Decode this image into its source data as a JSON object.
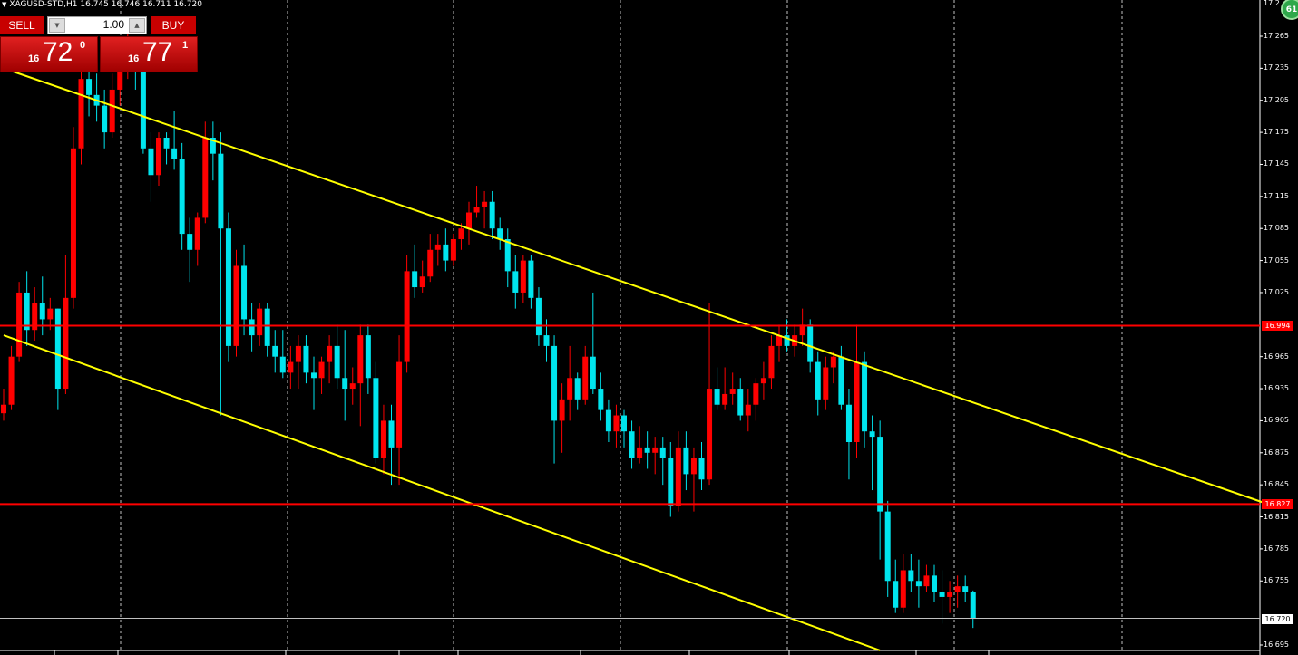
{
  "chart_header": {
    "symbol": "XAGUSD-STD,H1",
    "ohlc": "16.745 16.746 16.711 16.720"
  },
  "trade_panel": {
    "sell_label": "SELL",
    "buy_label": "BUY",
    "lot_value": "1.00",
    "sell_price": {
      "prefix": "16",
      "big": "72",
      "sup": "0"
    },
    "buy_price": {
      "prefix": "16",
      "big": "77",
      "sup": "1"
    }
  },
  "badge": "61",
  "colors": {
    "bull": "#ff0000",
    "bear": "#00e5ee",
    "trend": "#ffff00",
    "level": "#ff0000",
    "grid": "#c0c0c0",
    "background": "#000000"
  },
  "chart_data": {
    "type": "candlestick",
    "symbol": "XAGUSD-STD",
    "timeframe": "H1",
    "y_ticks": [
      "17.265",
      "17.235",
      "17.205",
      "17.175",
      "17.145",
      "17.115",
      "17.085",
      "17.055",
      "17.025",
      "16.965",
      "16.935",
      "16.905",
      "16.875",
      "16.845",
      "16.815",
      "16.785",
      "16.755",
      "16.695"
    ],
    "top_tick_partial": "17.2",
    "ylim": [
      16.688,
      17.295
    ],
    "levels": [
      {
        "label": "16.994",
        "value": 16.994
      },
      {
        "label": "16.827",
        "value": 16.827
      }
    ],
    "current_price": {
      "label": "16.720",
      "value": 16.72
    },
    "trendlines": [
      {
        "p1": [
          0,
          17.235
        ],
        "p2": [
          163,
          16.827
        ]
      },
      {
        "p1": [
          0,
          16.985
        ],
        "p2": [
          113,
          16.69
        ]
      }
    ],
    "candles": [
      [
        16.912,
        16.935,
        16.905,
        16.92
      ],
      [
        16.92,
        16.975,
        16.915,
        16.965
      ],
      [
        16.965,
        17.035,
        16.96,
        17.025
      ],
      [
        17.025,
        17.045,
        16.975,
        16.99
      ],
      [
        16.99,
        17.03,
        16.98,
        17.015
      ],
      [
        17.015,
        17.04,
        16.985,
        17.0
      ],
      [
        17.0,
        17.02,
        16.99,
        17.01
      ],
      [
        17.01,
        17.01,
        16.915,
        16.935
      ],
      [
        16.935,
        17.06,
        16.93,
        17.02
      ],
      [
        17.02,
        17.18,
        17.01,
        17.16
      ],
      [
        17.16,
        17.26,
        17.145,
        17.225
      ],
      [
        17.225,
        17.25,
        17.19,
        17.21
      ],
      [
        17.21,
        17.23,
        17.185,
        17.2
      ],
      [
        17.2,
        17.215,
        17.16,
        17.175
      ],
      [
        17.175,
        17.23,
        17.17,
        17.215
      ],
      [
        17.215,
        17.255,
        17.2,
        17.24
      ],
      [
        17.24,
        17.27,
        17.225,
        17.25
      ],
      [
        17.25,
        17.265,
        17.215,
        17.235
      ],
      [
        17.235,
        17.245,
        17.155,
        17.16
      ],
      [
        17.16,
        17.175,
        17.11,
        17.135
      ],
      [
        17.135,
        17.175,
        17.125,
        17.17
      ],
      [
        17.17,
        17.175,
        17.145,
        17.16
      ],
      [
        17.16,
        17.195,
        17.14,
        17.15
      ],
      [
        17.15,
        17.165,
        17.065,
        17.08
      ],
      [
        17.08,
        17.095,
        17.035,
        17.065
      ],
      [
        17.065,
        17.1,
        17.05,
        17.095
      ],
      [
        17.095,
        17.185,
        17.09,
        17.17
      ],
      [
        17.17,
        17.185,
        17.13,
        17.155
      ],
      [
        17.155,
        17.175,
        16.91,
        17.085
      ],
      [
        17.085,
        17.1,
        16.96,
        16.975
      ],
      [
        16.975,
        17.065,
        16.965,
        17.05
      ],
      [
        17.05,
        17.07,
        16.985,
        17.0
      ],
      [
        17.0,
        17.015,
        16.97,
        16.985
      ],
      [
        16.985,
        17.015,
        16.975,
        17.01
      ],
      [
        17.01,
        17.015,
        16.965,
        16.975
      ],
      [
        16.975,
        16.99,
        16.95,
        16.965
      ],
      [
        16.965,
        16.99,
        16.945,
        16.95
      ],
      [
        16.95,
        16.975,
        16.935,
        16.96
      ],
      [
        16.96,
        16.985,
        16.935,
        16.975
      ],
      [
        16.975,
        16.985,
        16.94,
        16.95
      ],
      [
        16.95,
        16.965,
        16.915,
        16.945
      ],
      [
        16.945,
        16.965,
        16.93,
        16.96
      ],
      [
        16.96,
        16.985,
        16.94,
        16.975
      ],
      [
        16.975,
        16.995,
        16.935,
        16.945
      ],
      [
        16.945,
        16.99,
        16.905,
        16.935
      ],
      [
        16.935,
        16.955,
        16.92,
        16.94
      ],
      [
        16.94,
        16.995,
        16.9,
        16.985
      ],
      [
        16.985,
        16.995,
        16.93,
        16.945
      ],
      [
        16.945,
        16.96,
        16.865,
        16.87
      ],
      [
        16.87,
        16.92,
        16.855,
        16.905
      ],
      [
        16.905,
        16.92,
        16.845,
        16.88
      ],
      [
        16.88,
        16.985,
        16.845,
        16.96
      ],
      [
        16.96,
        17.06,
        16.95,
        17.045
      ],
      [
        17.045,
        17.07,
        17.02,
        17.03
      ],
      [
        17.03,
        17.055,
        17.025,
        17.04
      ],
      [
        17.04,
        17.08,
        17.035,
        17.065
      ],
      [
        17.065,
        17.08,
        17.05,
        17.07
      ],
      [
        17.07,
        17.085,
        17.045,
        17.055
      ],
      [
        17.055,
        17.08,
        17.05,
        17.075
      ],
      [
        17.075,
        17.09,
        17.065,
        17.085
      ],
      [
        17.085,
        17.11,
        17.07,
        17.1
      ],
      [
        17.1,
        17.125,
        17.095,
        17.105
      ],
      [
        17.105,
        17.12,
        17.085,
        17.11
      ],
      [
        17.11,
        17.12,
        17.075,
        17.085
      ],
      [
        17.085,
        17.095,
        17.065,
        17.075
      ],
      [
        17.075,
        17.085,
        17.03,
        17.045
      ],
      [
        17.045,
        17.06,
        17.01,
        17.025
      ],
      [
        17.025,
        17.06,
        17.015,
        17.055
      ],
      [
        17.055,
        17.06,
        17.01,
        17.02
      ],
      [
        17.02,
        17.03,
        16.975,
        16.985
      ],
      [
        16.985,
        17.0,
        16.96,
        16.975
      ],
      [
        16.975,
        16.985,
        16.865,
        16.905
      ],
      [
        16.905,
        16.94,
        16.875,
        16.925
      ],
      [
        16.925,
        16.975,
        16.905,
        16.945
      ],
      [
        16.945,
        16.95,
        16.915,
        16.925
      ],
      [
        16.925,
        16.975,
        16.92,
        16.965
      ],
      [
        16.965,
        17.025,
        16.93,
        16.935
      ],
      [
        16.935,
        16.95,
        16.905,
        16.915
      ],
      [
        16.915,
        16.925,
        16.885,
        16.895
      ],
      [
        16.895,
        16.92,
        16.88,
        16.91
      ],
      [
        16.91,
        16.915,
        16.88,
        16.895
      ],
      [
        16.895,
        16.905,
        16.86,
        16.87
      ],
      [
        16.87,
        16.9,
        16.865,
        16.88
      ],
      [
        16.88,
        16.895,
        16.86,
        16.875
      ],
      [
        16.875,
        16.89,
        16.855,
        16.88
      ],
      [
        16.88,
        16.89,
        16.845,
        16.87
      ],
      [
        16.87,
        16.885,
        16.815,
        16.825
      ],
      [
        16.825,
        16.895,
        16.82,
        16.88
      ],
      [
        16.88,
        16.895,
        16.84,
        16.855
      ],
      [
        16.855,
        16.88,
        16.82,
        16.87
      ],
      [
        16.87,
        16.885,
        16.84,
        16.85
      ],
      [
        16.85,
        17.015,
        16.845,
        16.935
      ],
      [
        16.935,
        16.955,
        16.915,
        16.92
      ],
      [
        16.92,
        16.955,
        16.915,
        16.93
      ],
      [
        16.93,
        16.95,
        16.92,
        16.935
      ],
      [
        16.935,
        16.945,
        16.905,
        16.91
      ],
      [
        16.91,
        16.935,
        16.895,
        16.92
      ],
      [
        16.92,
        16.945,
        16.905,
        16.94
      ],
      [
        16.94,
        16.96,
        16.925,
        16.945
      ],
      [
        16.945,
        16.985,
        16.935,
        16.975
      ],
      [
        16.975,
        16.995,
        16.96,
        16.985
      ],
      [
        16.985,
        17.0,
        16.97,
        16.975
      ],
      [
        16.975,
        16.995,
        16.965,
        16.985
      ],
      [
        16.985,
        17.01,
        16.975,
        16.995
      ],
      [
        16.995,
        17.0,
        16.95,
        16.96
      ],
      [
        16.96,
        16.97,
        16.91,
        16.925
      ],
      [
        16.925,
        16.965,
        16.915,
        16.955
      ],
      [
        16.955,
        16.97,
        16.94,
        16.965
      ],
      [
        16.965,
        16.975,
        16.915,
        16.92
      ],
      [
        16.92,
        16.935,
        16.85,
        16.885
      ],
      [
        16.885,
        16.995,
        16.87,
        16.96
      ],
      [
        16.96,
        16.97,
        16.88,
        16.895
      ],
      [
        16.895,
        16.91,
        16.84,
        16.89
      ],
      [
        16.89,
        16.905,
        16.775,
        16.82
      ],
      [
        16.82,
        16.83,
        16.74,
        16.755
      ],
      [
        16.755,
        16.775,
        16.725,
        16.73
      ],
      [
        16.73,
        16.78,
        16.725,
        16.765
      ],
      [
        16.765,
        16.78,
        16.745,
        16.755
      ],
      [
        16.755,
        16.775,
        16.73,
        16.75
      ],
      [
        16.75,
        16.77,
        16.745,
        16.76
      ],
      [
        16.76,
        16.77,
        16.735,
        16.745
      ],
      [
        16.745,
        16.765,
        16.715,
        16.74
      ],
      [
        16.74,
        16.755,
        16.725,
        16.745
      ],
      [
        16.745,
        16.76,
        16.73,
        16.75
      ],
      [
        16.75,
        16.76,
        16.735,
        16.745
      ],
      [
        16.745,
        16.746,
        16.711,
        16.72
      ]
    ]
  }
}
